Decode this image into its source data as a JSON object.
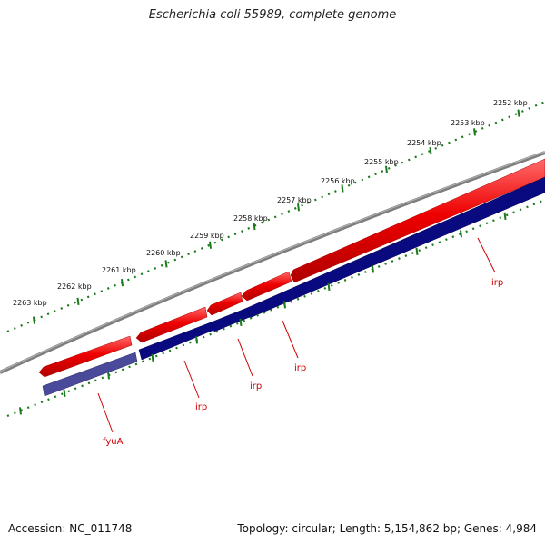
{
  "title": "Escherichia coli 55989, complete genome",
  "footer": {
    "accession": "Accession: NC_011748",
    "summary": "Topology: circular; Length: 5,154,862 bp; Genes: 4,984"
  },
  "ruler": {
    "labels": [
      "2252 kbp",
      "2253 kbp",
      "2254 kbp",
      "2255 kbp",
      "2256 kbp",
      "2257 kbp",
      "2258 kbp",
      "2259 kbp",
      "2260 kbp",
      "2261 kbp",
      "2262 kbp",
      "2263 kbp"
    ]
  },
  "gene_labels": [
    "fyuA",
    "irp",
    "irp",
    "irp",
    "irp"
  ],
  "colors": {
    "backbone": "#808080",
    "forward_gene": "#ee0000",
    "reverse_gene": "#0a0a80",
    "reverse_gene_light": "#4a4a9a",
    "tick": "#1b7a1b",
    "gene_label": "#cc0000"
  }
}
